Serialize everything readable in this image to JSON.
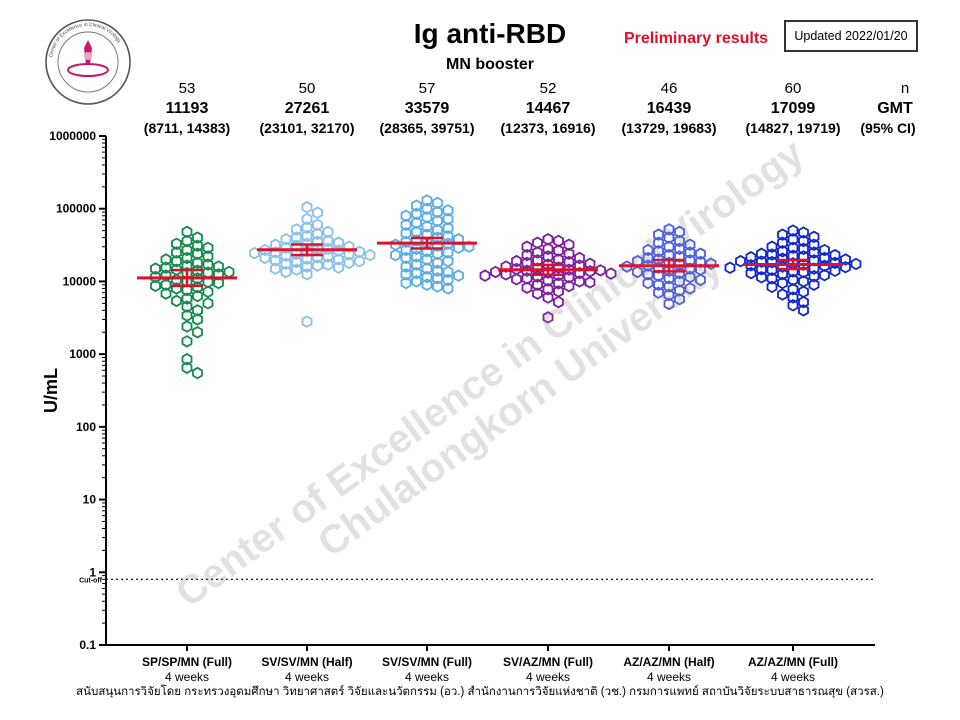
{
  "header": {
    "title": "Ig anti-RBD",
    "subtitle": "MN booster",
    "preliminary": "Preliminary results",
    "updated": "Updated 2022/01/20"
  },
  "logo": {
    "ring_text": "Center of Excellence in Clinical Virology"
  },
  "watermark": {
    "line1": "Center of Excellence in Clinical Virology",
    "line2": "Chulalongkorn University"
  },
  "footer": {
    "funding": "สนับสนุนการวิจัยโดย กระทรวงอุดมศึกษา วิทยาศาสตร์ วิจัยและนวัตกรรม (อว.) สำนักงานการวิจัยแห่งชาติ (วช.) กรมการแพทย์ สถาบันวิจัยระบบสาธารณสุข (สวรส.)"
  },
  "colors": {
    "gmt_line": "#e0102a",
    "cutoff_line": "#000000"
  },
  "chart_data": {
    "type": "scatter",
    "title": "Ig anti-RBD",
    "subtitle": "MN booster",
    "ylabel": "U/mL",
    "yscale": "log",
    "ylim": [
      0.1,
      1000000
    ],
    "yticks": [
      0.1,
      1,
      10,
      100,
      1000,
      10000,
      100000,
      1000000
    ],
    "ytick_labels": [
      "0.1",
      "1",
      "10",
      "100",
      "1000",
      "10000",
      "100000",
      "1000000"
    ],
    "cutoff": {
      "value": 0.8,
      "label": "Cut-off"
    },
    "stat_labels": {
      "n": "n",
      "gmt": "GMT",
      "ci": "(95% CI)"
    },
    "legend": "none",
    "grid": false,
    "groups": [
      {
        "label": "SP/SP/MN (Full)",
        "sublabel": "4 weeks",
        "color": "#138a4e",
        "n": "53",
        "gmt": 11193,
        "gmt_text": "11193",
        "ci": [
          8711,
          14383
        ],
        "ci_text": "(8711, 14383)",
        "values": [
          48000,
          40000,
          36000,
          33000,
          31000,
          29000,
          27000,
          25000,
          24000,
          22000,
          21000,
          20000,
          19000,
          18000,
          17000,
          16500,
          16000,
          15500,
          15000,
          14500,
          14000,
          13500,
          13200,
          13000,
          12500,
          12000,
          11500,
          11000,
          10500,
          10000,
          9800,
          9500,
          9000,
          8700,
          8300,
          8000,
          7600,
          7200,
          6800,
          6300,
          5800,
          5400,
          5000,
          4500,
          4000,
          3400,
          3000,
          2400,
          2000,
          1500,
          850,
          650,
          550
        ]
      },
      {
        "label": "SV/SV/MN (Half)",
        "sublabel": "4 weeks",
        "color": "#8ac0e8",
        "n": "50",
        "gmt": 27261,
        "gmt_text": "27261",
        "ci": [
          23101,
          32170
        ],
        "ci_text": "(23101, 32170)",
        "values": [
          105000,
          88000,
          72000,
          60000,
          55000,
          52000,
          48000,
          45000,
          42000,
          40000,
          38000,
          36000,
          35000,
          34000,
          33000,
          32000,
          31000,
          30000,
          29000,
          28000,
          27500,
          27000,
          26500,
          26000,
          25500,
          25000,
          24500,
          24000,
          23500,
          23000,
          22500,
          22000,
          21500,
          21000,
          20500,
          20000,
          19500,
          19000,
          18500,
          18000,
          17500,
          17000,
          16500,
          16000,
          15500,
          15000,
          14500,
          13500,
          12500,
          2800
        ]
      },
      {
        "label": "SV/SV/MN (Full)",
        "sublabel": "4 weeks",
        "color": "#5aace4",
        "n": "57",
        "gmt": 33579,
        "gmt_text": "33579",
        "ci": [
          28365,
          39751
        ],
        "ci_text": "(28365, 39751)",
        "values": [
          130000,
          120000,
          110000,
          100000,
          95000,
          90000,
          85000,
          80000,
          76000,
          72000,
          68000,
          64000,
          60000,
          57000,
          54000,
          51000,
          48000,
          46000,
          44000,
          42000,
          40000,
          38000,
          36500,
          35000,
          34000,
          33000,
          32000,
          31000,
          30000,
          29000,
          28000,
          27000,
          26000,
          25000,
          24000,
          23000,
          22000,
          21000,
          20000,
          19000,
          18000,
          17000,
          16000,
          15000,
          14000,
          13500,
          13000,
          12500,
          12000,
          11500,
          11000,
          10500,
          10000,
          9500,
          9000,
          8500,
          8000
        ]
      },
      {
        "label": "SV/AZ/MN (Full)",
        "sublabel": "4 weeks",
        "color": "#7a1f9e",
        "n": "52",
        "gmt": 14467,
        "gmt_text": "14467",
        "ci": [
          12373,
          16916
        ],
        "ci_text": "(12373, 16916)",
        "values": [
          38000,
          36000,
          34000,
          32000,
          30000,
          28000,
          26500,
          25000,
          24000,
          23000,
          22000,
          21000,
          20000,
          19500,
          19000,
          18500,
          18000,
          17500,
          17000,
          16500,
          16000,
          15500,
          15000,
          14800,
          14500,
          14200,
          14000,
          13800,
          13500,
          13200,
          13000,
          12800,
          12500,
          12200,
          12000,
          11700,
          11400,
          11000,
          10700,
          10300,
          10000,
          9700,
          9400,
          9000,
          8600,
          8200,
          7800,
          7300,
          6800,
          6000,
          5200,
          3200
        ]
      },
      {
        "label": "AZ/AZ/MN (Half)",
        "sublabel": "4 weeks",
        "color": "#4a5ee0",
        "n": "46",
        "gmt": 16439,
        "gmt_text": "16439",
        "ci": [
          13729,
          19683
        ],
        "ci_text": "(13729, 19683)",
        "values": [
          52000,
          48000,
          44000,
          40000,
          36000,
          34000,
          32000,
          30000,
          28000,
          27000,
          26000,
          25000,
          24000,
          23000,
          22000,
          21000,
          20000,
          19500,
          19000,
          18500,
          18000,
          17500,
          17000,
          16500,
          16000,
          15500,
          15000,
          14500,
          14000,
          13500,
          13000,
          12500,
          12000,
          11500,
          11000,
          10500,
          10000,
          9500,
          9000,
          8500,
          8000,
          7500,
          7000,
          6500,
          5700,
          4900
        ]
      },
      {
        "label": "AZ/AZ/MN (Full)",
        "sublabel": "4 weeks",
        "color": "#1026c8",
        "n": "60",
        "gmt": 17099,
        "gmt_text": "17099",
        "ci": [
          14827,
          19719
        ],
        "ci_text": "(14827, 19719)",
        "values": [
          50000,
          47000,
          44000,
          41000,
          38000,
          36000,
          34000,
          32000,
          30000,
          29000,
          28000,
          27000,
          26000,
          25000,
          24000,
          23500,
          23000,
          22500,
          22000,
          21500,
          21000,
          20500,
          20000,
          19500,
          19000,
          18700,
          18400,
          18000,
          17700,
          17400,
          17000,
          16700,
          16400,
          16000,
          15700,
          15400,
          15000,
          14700,
          14400,
          14000,
          13700,
          13400,
          13000,
          12600,
          12200,
          11800,
          11400,
          11000,
          10500,
          10000,
          9500,
          9000,
          8400,
          7800,
          7200,
          6600,
          6000,
          5200,
          4700,
          4000
        ]
      }
    ]
  }
}
